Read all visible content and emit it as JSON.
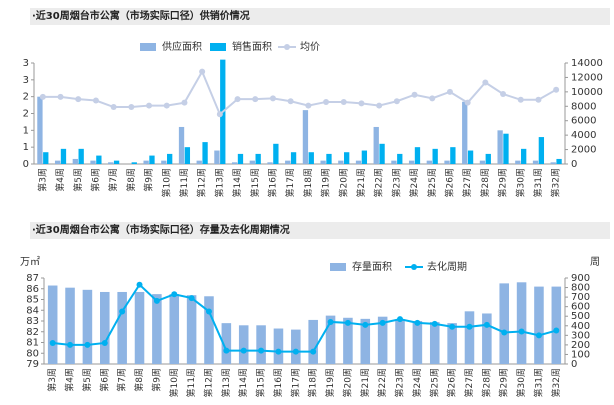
{
  "chart_data": [
    {
      "type": "bar-line",
      "title": "·近30周烟台市公寓（市场实际口径）供销价情况",
      "categories": [
        "第3周",
        "第4周",
        "第5周",
        "第6周",
        "第7周",
        "第8周",
        "第9周",
        "第10周",
        "第11周",
        "第12周",
        "第13周",
        "第14周",
        "第15周",
        "第16周",
        "第17周",
        "第18周",
        "第19周",
        "第20周",
        "第21周",
        "第22周",
        "第23周",
        "第24周",
        "第25周",
        "第26周",
        "第27周",
        "第28周",
        "第29周",
        "第30周",
        "第31周",
        "第32周"
      ],
      "series": [
        {
          "name": "供应面积",
          "color": "#8eb4e3",
          "kind": "bar",
          "values": [
            2.0,
            0.1,
            0.15,
            0.1,
            0.05,
            0.0,
            0.1,
            0.1,
            1.1,
            0.1,
            0.4,
            0.05,
            0.1,
            0.05,
            0.1,
            1.6,
            0.1,
            0.1,
            0.1,
            1.1,
            0.1,
            0.1,
            0.1,
            0.1,
            1.85,
            0.1,
            1.0,
            0.1,
            0.1,
            0.05
          ]
        },
        {
          "name": "销售面积",
          "color": "#00b0f0",
          "kind": "bar",
          "values": [
            0.35,
            0.45,
            0.45,
            0.25,
            0.1,
            0.05,
            0.25,
            0.3,
            0.5,
            0.65,
            3.1,
            0.3,
            0.3,
            0.6,
            0.35,
            0.35,
            0.3,
            0.35,
            0.4,
            0.6,
            0.3,
            0.5,
            0.45,
            0.5,
            0.4,
            0.3,
            0.9,
            0.45,
            0.8,
            0.15
          ]
        },
        {
          "name": "均价",
          "color": "#c5cfe6",
          "kind": "line",
          "axis": "y2",
          "values": [
            9300,
            9300,
            9000,
            8800,
            7900,
            7900,
            8100,
            8100,
            8500,
            12800,
            6900,
            9000,
            9000,
            9100,
            8700,
            8100,
            8600,
            8600,
            8400,
            8100,
            8700,
            9600,
            9100,
            10000,
            8500,
            11300,
            9700,
            8900,
            8900,
            10300
          ]
        }
      ],
      "ylim": [
        0,
        3
      ],
      "yticks": [
        0,
        {
          "value": 0.5,
          "label": "1"
        },
        1,
        {
          "value": 1.5,
          "label": "2"
        },
        2,
        {
          "value": 2.5,
          "label": "3"
        },
        3
      ],
      "y2lim": [
        0,
        14000
      ],
      "y2ticks": [
        0,
        2000,
        4000,
        6000,
        8000,
        10000,
        12000,
        14000
      ]
    },
    {
      "type": "bar-line",
      "title": "·近30周烟台市公寓（市场实际口径）存量及去化周期情况",
      "y_label": "万㎡",
      "y2_label": "周",
      "categories": [
        "第3周",
        "第4周",
        "第5周",
        "第6周",
        "第7周",
        "第8周",
        "第9周",
        "第10周",
        "第11周",
        "第12周",
        "第13周",
        "第14周",
        "第15周",
        "第16周",
        "第17周",
        "第18周",
        "第19周",
        "第20周",
        "第21周",
        "第22周",
        "第23周",
        "第24周",
        "第25周",
        "第26周",
        "第27周",
        "第28周",
        "第29周",
        "第30周",
        "第31周",
        "第32周"
      ],
      "series": [
        {
          "name": "存量面积",
          "color": "#8eb4e3",
          "kind": "bar",
          "values": [
            86.3,
            86.1,
            85.9,
            85.7,
            85.7,
            85.7,
            85.5,
            85.5,
            85.4,
            85.3,
            82.8,
            82.6,
            82.6,
            82.3,
            82.2,
            83.1,
            83.5,
            83.3,
            83.2,
            83.4,
            83.1,
            83.0,
            82.9,
            82.8,
            83.9,
            83.7,
            86.5,
            86.6,
            86.2,
            86.2
          ]
        },
        {
          "name": "去化周期",
          "color": "#00b0f0",
          "kind": "line",
          "axis": "y2",
          "values": [
            220,
            200,
            200,
            220,
            550,
            830,
            660,
            730,
            690,
            550,
            140,
            140,
            140,
            130,
            130,
            130,
            440,
            430,
            410,
            430,
            470,
            430,
            420,
            390,
            390,
            410,
            330,
            340,
            300,
            350
          ]
        }
      ],
      "ylim": [
        79,
        87
      ],
      "yticks": [
        79,
        80,
        81,
        82,
        83,
        84,
        85,
        86,
        87
      ],
      "y2lim": [
        0,
        900
      ],
      "y2ticks": [
        0,
        100,
        200,
        300,
        400,
        500,
        600,
        700,
        800,
        900
      ]
    }
  ]
}
